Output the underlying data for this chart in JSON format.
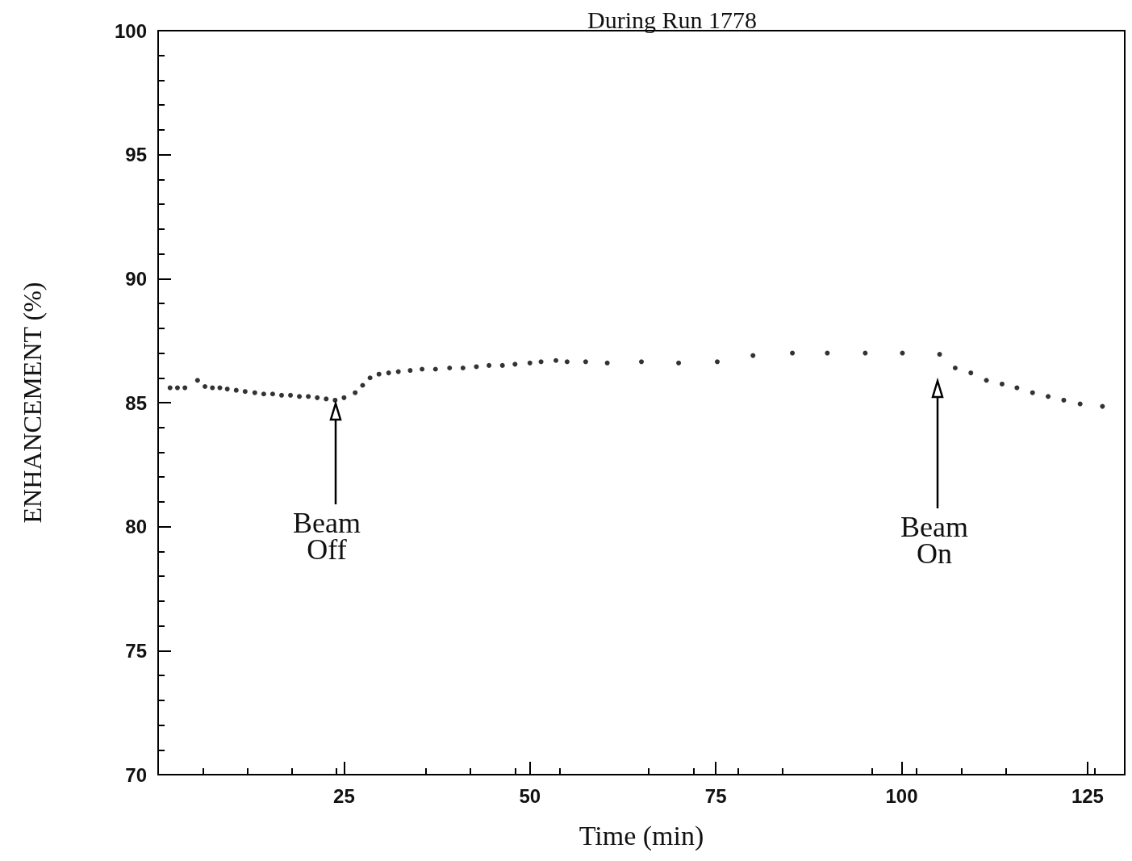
{
  "chart_data": {
    "type": "scatter",
    "title": "During Run 1778",
    "xlabel": "Time (min)",
    "ylabel": "ENHANCEMENT (%)",
    "x": [
      1.6,
      2.6,
      3.6,
      5.3,
      6.3,
      7.3,
      8.3,
      9.3,
      10.5,
      11.7,
      13,
      14.2,
      15.4,
      16.6,
      17.8,
      19,
      20.2,
      21.4,
      22.6,
      23.8,
      25,
      26.5,
      27.5,
      28.5,
      29.7,
      31,
      32.3,
      33.9,
      35.5,
      37.3,
      39.2,
      41,
      42.8,
      44.5,
      46.3,
      48,
      50,
      51.5,
      53.5,
      55,
      57.5,
      60.4,
      65,
      70,
      75.2,
      80,
      85.3,
      90,
      95.1,
      100.1,
      105.1,
      107.2,
      109.3,
      111.4,
      113.5,
      115.5,
      117.6,
      119.7,
      121.8,
      124,
      127
    ],
    "values": [
      85.6,
      85.6,
      85.6,
      85.9,
      85.65,
      85.6,
      85.6,
      85.55,
      85.5,
      85.45,
      85.4,
      85.35,
      85.35,
      85.3,
      85.3,
      85.25,
      85.25,
      85.2,
      85.15,
      85.1,
      85.2,
      85.4,
      85.7,
      86.0,
      86.15,
      86.2,
      86.25,
      86.3,
      86.35,
      86.35,
      86.4,
      86.4,
      86.45,
      86.5,
      86.5,
      86.55,
      86.6,
      86.65,
      86.7,
      86.65,
      86.65,
      86.6,
      86.65,
      86.6,
      86.65,
      86.9,
      87.0,
      87.0,
      87.0,
      87.0,
      86.95,
      86.4,
      86.2,
      85.9,
      85.75,
      85.6,
      85.4,
      85.25,
      85.1,
      84.95,
      84.85
    ],
    "color": "#000000",
    "marker": "circle",
    "xlim": [
      0,
      130
    ],
    "xticks": [
      25,
      50,
      75,
      100,
      125
    ],
    "ylim": [
      70,
      100
    ],
    "yticks": [
      70,
      75,
      80,
      85,
      90,
      95,
      100
    ],
    "grid": false,
    "annotations": [
      "Beam\nOff",
      "Beam\nOn"
    ]
  }
}
